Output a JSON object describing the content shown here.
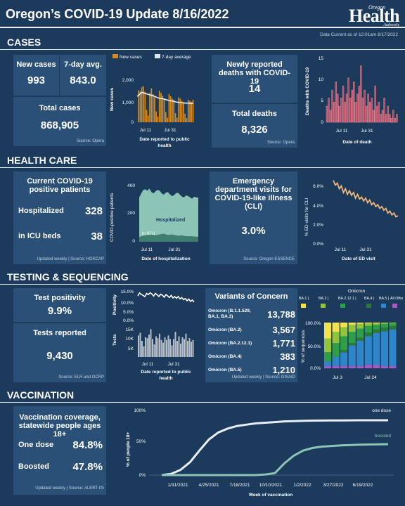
{
  "header": {
    "title": "Oregon’s COVID-19 Update 8/16/2022",
    "logo_top": "Oregon",
    "logo_main": "Health",
    "logo_sub": "Authority",
    "data_current": "Data Current as of 12:01am 8/17/2022"
  },
  "cases": {
    "section": "CASES",
    "new_label": "New cases",
    "new_value": "993",
    "avg_label": "7-day avg.",
    "avg_value": "843.0",
    "total_label": "Total cases",
    "total_value": "868,905",
    "source": "Source: Opera",
    "deaths_new_label": "Newly reported deaths with COVID-19",
    "deaths_new_value": "14",
    "deaths_total_label": "Total deaths",
    "deaths_total_value": "8,326",
    "deaths_source": "Source: Opera"
  },
  "health_care": {
    "section": "HEALTH CARE",
    "current_label": "Current COVID-19 positive patients",
    "hosp_label": "Hospitalized",
    "hosp_value": "328",
    "icu_label": "in ICU beds",
    "icu_value": "38",
    "source": "Updated weekly | Source: HOSCAP",
    "ed_label": "Emergency department visits for COVID-19-like illness (CLI)",
    "ed_value": "3.0%",
    "ed_source": "Source: Oregon ESSENCE"
  },
  "testing": {
    "section": "TESTING & SEQUENCING",
    "positivity_label": "Test positivity",
    "positivity_value": "9.9%",
    "tests_label": "Tests reported",
    "tests_value": "9,430",
    "source": "Source: ELR and OCRP",
    "variants_title": "Variants of Concern",
    "variants": [
      {
        "name": "Omicron (B.1.1.529, BA.1, BA.3)",
        "value": "13,788"
      },
      {
        "name": "Omicron (BA.2)",
        "value": "3,567"
      },
      {
        "name": "Omicron (BA.2.12.1)",
        "value": "1,771"
      },
      {
        "name": "Omicron (BA.4)",
        "value": "383"
      },
      {
        "name": "Omicron (BA.5)",
        "value": "1,210"
      }
    ],
    "variants_source": "Updated weekly | Source: GISAID"
  },
  "vaccination": {
    "section": "VACCINATION",
    "coverage_label": "Vaccination coverage, statewide people ages 18+",
    "one_label": "One dose",
    "one_value": "84.8%",
    "boost_label": "Boosted",
    "boost_value": "47.8%",
    "source": "Updated weekly | Source: ALERT IIS"
  },
  "chart_data": [
    {
      "type": "bar",
      "id": "cases",
      "legend": [
        "New cases",
        "7-day average"
      ],
      "ylabel": "New cases",
      "xlabel": "Date reported to public health",
      "yticks": [
        "2,000",
        "1,000",
        "0"
      ],
      "xticks": [
        "Jul 11",
        "Jul 31"
      ],
      "ylim": [
        0,
        2300
      ],
      "values": [
        0,
        1420,
        1380,
        1550,
        1600,
        1350,
        550,
        300,
        1300,
        1500,
        1250,
        1100,
        480,
        250,
        1400,
        1300,
        1180,
        1050,
        450,
        200,
        1250,
        1150,
        1050,
        1000,
        400,
        200,
        1100,
        1050,
        950,
        900,
        380,
        180,
        990,
        950,
        900,
        993
      ],
      "avg": [
        1150,
        1200,
        1280,
        1320,
        1300,
        1280,
        1250,
        1230,
        1210,
        1190,
        1170,
        1140,
        1110,
        1080,
        1060,
        1050,
        1040,
        1020,
        1000,
        980,
        960,
        950,
        940,
        920,
        900,
        890,
        880,
        870,
        860,
        855,
        850,
        848,
        845,
        843,
        843,
        843
      ]
    },
    {
      "type": "bar",
      "id": "deaths",
      "ylabel": "Deaths with COVID-19",
      "xlabel": "Date of death",
      "yticks": [
        "15",
        "10",
        "5",
        "0"
      ],
      "xticks": [
        "Jul 11",
        "Jul 31"
      ],
      "ylim": [
        0,
        16
      ],
      "values": [
        4,
        6,
        3,
        8,
        5,
        10,
        7,
        4,
        6,
        9,
        5,
        7,
        11,
        6,
        8,
        10,
        5,
        7,
        9,
        14,
        6,
        8,
        4,
        7,
        5,
        6,
        3,
        9,
        4,
        5,
        2,
        3,
        6,
        2,
        4,
        2,
        1,
        3,
        1,
        2
      ]
    },
    {
      "type": "area",
      "id": "hospital",
      "ylabel": "COVID-positive patients",
      "xlabel": "Date of hospitalization",
      "yticks": [
        "400",
        "200",
        "0"
      ],
      "xticks": [
        "Jul 11",
        "Jul 31"
      ],
      "ylim": [
        0,
        460
      ],
      "series_labels": [
        "Hospitalized",
        "in ICU"
      ],
      "hospitalized": [
        330,
        360,
        385,
        390,
        380,
        395,
        370,
        360,
        375,
        385,
        380,
        360,
        350,
        365,
        370,
        355,
        340,
        345,
        360,
        365,
        350,
        335,
        330,
        345,
        340,
        330,
        320,
        335,
        330,
        328
      ],
      "icu": [
        35,
        40,
        45,
        48,
        50,
        52,
        55,
        50,
        48,
        52,
        55,
        58,
        60,
        55,
        50,
        52,
        55,
        50,
        48,
        45,
        46,
        48,
        44,
        42,
        40,
        42,
        40,
        39,
        38,
        38
      ]
    },
    {
      "type": "line",
      "id": "ed",
      "ylabel": "% ED visits for CLI",
      "xlabel": "Date of ED visit",
      "yticks": [
        "6.0%",
        "4.0%",
        "2.0%",
        "0.0%"
      ],
      "xticks": [
        "Jul 11",
        "Jul 31"
      ],
      "ylim": [
        0,
        7
      ],
      "values": [
        6.8,
        6.3,
        6.5,
        5.9,
        6.2,
        5.5,
        5.9,
        5.3,
        5.7,
        5.2,
        5.5,
        4.9,
        5.3,
        4.8,
        5.0,
        4.6,
        4.9,
        4.4,
        4.7,
        4.2,
        4.4,
        4.0,
        4.2,
        3.8,
        4.0,
        3.6,
        3.8,
        3.3,
        3.5,
        3.1,
        3.3,
        2.9,
        3.0
      ]
    },
    {
      "type": "line",
      "id": "positivity",
      "ylabel": "Positivity",
      "yticks": [
        "15.0%",
        "10.0%",
        "5.0%",
        "0.0%"
      ],
      "ylim": [
        0,
        17
      ],
      "values": [
        13.2,
        14.8,
        14.0,
        13.5,
        12.8,
        14.5,
        13.9,
        14.9,
        14.2,
        13.1,
        14.6,
        13.8,
        12.9,
        14.1,
        13.6,
        12.5,
        13.9,
        13.2,
        12.4,
        13.5,
        12.1,
        12.8,
        11.9,
        12.9,
        11.6,
        12.3,
        11.2,
        11.8,
        10.6,
        11.5,
        10.2,
        11.0,
        9.9
      ]
    },
    {
      "type": "bar",
      "id": "tests",
      "ylabel": "Tests",
      "xlabel": "Date reported to public health",
      "yticks": [
        "15K",
        "10K",
        "5K"
      ],
      "xticks": [
        "Jul 11",
        "Jul 31"
      ],
      "ylim": [
        0,
        18000
      ],
      "values": [
        12000,
        13500,
        9000,
        6000,
        11000,
        10500,
        12500,
        15500,
        10000,
        7000,
        11500,
        10500,
        13000,
        9500,
        8000,
        11000,
        9500,
        12000,
        10000,
        6500,
        10000,
        14000,
        9000,
        11500,
        7500,
        11000,
        10000,
        13000,
        9000,
        10500,
        8500,
        9430
      ]
    },
    {
      "type": "bar",
      "id": "variants",
      "stacked": true,
      "ylabel": "% of sequences",
      "legend_title": "Omicron",
      "legend": [
        "BA.1",
        "BA.2",
        "BA.2.12.1",
        "BA.4",
        "BA.5",
        "All Other"
      ],
      "colors": [
        "#f2e14a",
        "#8fc43c",
        "#2e9e48",
        "#2b7a38",
        "#2e86c8",
        "#a45bc6"
      ],
      "yticks": [
        "100.0%",
        "50.0%",
        "0.0%"
      ],
      "xticks": [
        "Jul 3",
        "Jul 24"
      ],
      "stacks": [
        [
          35,
          30,
          20,
          0,
          10,
          5
        ],
        [
          20,
          25,
          30,
          0,
          20,
          5
        ],
        [
          10,
          20,
          30,
          5,
          30,
          5
        ],
        [
          5,
          15,
          25,
          5,
          45,
          5
        ],
        [
          3,
          10,
          20,
          7,
          55,
          5
        ],
        [
          2,
          5,
          15,
          8,
          62,
          8
        ],
        [
          2,
          3,
          10,
          8,
          70,
          7
        ],
        [
          0,
          3,
          8,
          8,
          76,
          5
        ],
        [
          0,
          2,
          6,
          7,
          80,
          5
        ]
      ]
    },
    {
      "type": "line",
      "id": "vaccination",
      "ylabel": "% of people 18+",
      "xlabel": "Week of vaccination",
      "yticks": [
        "100%",
        "50%",
        "0%"
      ],
      "xticks": [
        "1/31/2021",
        "4/25/2021",
        "7/18/2021",
        "10/10/2021",
        "1/2/2022",
        "3/27/2022",
        "6/19/2022"
      ],
      "ylim": [
        0,
        100
      ],
      "series": [
        {
          "name": "one dose",
          "values": [
            0,
            2,
            8,
            20,
            38,
            55,
            66,
            72,
            76,
            78,
            80,
            81,
            82,
            83,
            83.5,
            84,
            84.2,
            84.4,
            84.5,
            84.6,
            84.7,
            84.8,
            84.8,
            84.8,
            84.8
          ]
        },
        {
          "name": "boosted",
          "values": [
            0,
            0,
            0,
            0,
            0,
            0,
            0,
            0,
            0,
            0,
            0,
            1,
            3,
            18,
            30,
            38,
            42,
            44,
            45,
            46,
            46.5,
            47,
            47.3,
            47.6,
            47.8
          ]
        }
      ]
    }
  ]
}
